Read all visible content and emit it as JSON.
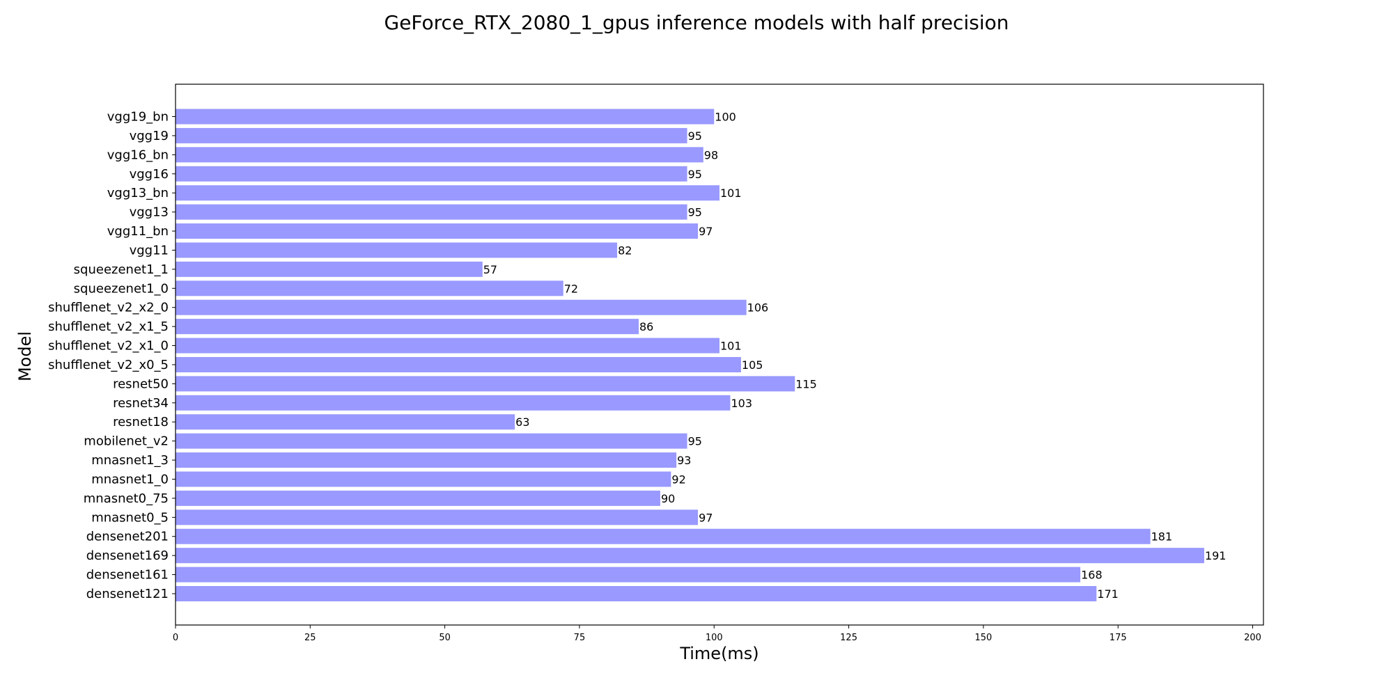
{
  "chart_data": {
    "type": "bar",
    "orientation": "horizontal",
    "title": "GeForce_RTX_2080_1_gpus inference models with half precision",
    "xlabel": "Time(ms)",
    "ylabel": "Model",
    "xlim": [
      0,
      200
    ],
    "xticks": [
      0,
      25,
      50,
      75,
      100,
      125,
      150,
      175,
      200
    ],
    "grid": false,
    "legend": "none",
    "bar_color": "#9999ff",
    "categories": [
      "vgg19_bn",
      "vgg19",
      "vgg16_bn",
      "vgg16",
      "vgg13_bn",
      "vgg13",
      "vgg11_bn",
      "vgg11",
      "squeezenet1_1",
      "squeezenet1_0",
      "shufflenet_v2_x2_0",
      "shufflenet_v2_x1_5",
      "shufflenet_v2_x1_0",
      "shufflenet_v2_x0_5",
      "resnet50",
      "resnet34",
      "resnet18",
      "mobilenet_v2",
      "mnasnet1_3",
      "mnasnet1_0",
      "mnasnet0_75",
      "mnasnet0_5",
      "densenet201",
      "densenet169",
      "densenet161",
      "densenet121"
    ],
    "values": [
      100,
      95,
      98,
      95,
      101,
      95,
      97,
      82,
      57,
      72,
      106,
      86,
      101,
      105,
      115,
      103,
      63,
      95,
      93,
      92,
      90,
      97,
      181,
      191,
      168,
      171
    ],
    "data_labels": [
      "100",
      "95",
      "98",
      "95",
      "101",
      "95",
      "97",
      "82",
      "57",
      "72",
      "106",
      "86",
      "101",
      "105",
      "115",
      "103",
      "63",
      "95",
      "93",
      "92",
      "90",
      "97",
      "181",
      "191",
      "168",
      "171"
    ]
  }
}
